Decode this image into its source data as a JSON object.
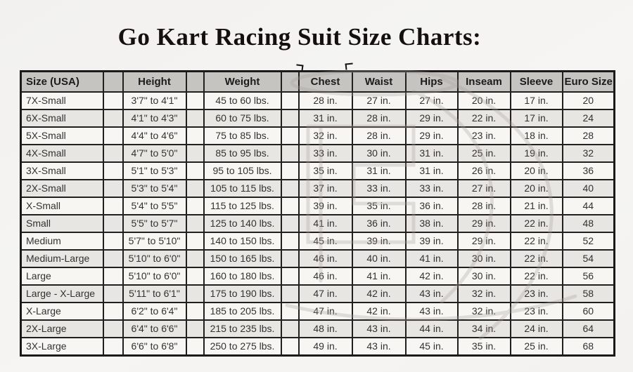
{
  "chart_data": {
    "type": "table",
    "title": "Go Kart Racing Suit Size Charts:",
    "columns": [
      "Size (USA)",
      "Height",
      "Weight",
      "Chest",
      "Waist",
      "Hips",
      "Inseam",
      "Sleeve",
      "Euro Size"
    ],
    "rows": [
      [
        "7X-Small",
        "3'7\" to 4'1\"",
        "45 to 60 lbs.",
        "28 in.",
        "27 in.",
        "27 in.",
        "20 in.",
        "17 in.",
        "20"
      ],
      [
        "6X-Small",
        "4'1\" to 4'3\"",
        "60 to 75 lbs.",
        "31 in.",
        "28 in.",
        "29 in.",
        "22 in.",
        "17 in.",
        "24"
      ],
      [
        "5X-Small",
        "4'4\" to 4'6\"",
        "75 to 85 lbs.",
        "32 in.",
        "28 in.",
        "29 in.",
        "23 in.",
        "18 in.",
        "28"
      ],
      [
        "4X-Small",
        "4'7\" to 5'0\"",
        "85 to 95 lbs.",
        "33 in.",
        "30 in.",
        "31 in.",
        "25 in.",
        "19 in.",
        "32"
      ],
      [
        "3X-Small",
        "5'1\" to 5'3\"",
        "95 to 105 lbs.",
        "35 in.",
        "31 in.",
        "31 in.",
        "26 in.",
        "20 in.",
        "36"
      ],
      [
        "2X-Small",
        "5'3\" to 5'4\"",
        "105 to 115 lbs.",
        "37 in.",
        "33 in.",
        "33 in.",
        "27 in.",
        "20 in.",
        "40"
      ],
      [
        "X-Small",
        "5'4\" to 5'5\"",
        "115 to 125 lbs.",
        "39 in.",
        "35 in.",
        "36 in.",
        "28 in.",
        "21 in.",
        "44"
      ],
      [
        "Small",
        "5'5\" to 5'7\"",
        "125 to 140 lbs.",
        "41 in.",
        "36 in.",
        "38 in.",
        "29 in.",
        "22 in.",
        "48"
      ],
      [
        "Medium",
        "5'7\" to 5'10\"",
        "140 to 150 lbs.",
        "45 in.",
        "39 in.",
        "39 in.",
        "29 in.",
        "22 in.",
        "52"
      ],
      [
        "Medium-Large",
        "5'10\" to 6'0\"",
        "150 to 165 lbs.",
        "46 in.",
        "40 in.",
        "41 in.",
        "30 in.",
        "22 in.",
        "54"
      ],
      [
        "Large",
        "5'10\" to 6'0\"",
        "160 to 180 lbs.",
        "46 in.",
        "41 in.",
        "42 in.",
        "30 in.",
        "22 in.",
        "56"
      ],
      [
        "Large - X-Large",
        "5'11\" to 6'1\"",
        "175 to 190 lbs.",
        "47 in.",
        "42 in.",
        "43 in.",
        "32 in.",
        "23 in.",
        "58"
      ],
      [
        "X-Large",
        "6'2\" to 6'4\"",
        "185 to 205 lbs.",
        "47 in.",
        "42 in.",
        "43 in.",
        "32 in.",
        "23 in.",
        "60"
      ],
      [
        "2X-Large",
        "6'4\" to 6'6\"",
        "215 to 235 lbs.",
        "48 in.",
        "43 in.",
        "44 in.",
        "34 in.",
        "24 in.",
        "64"
      ],
      [
        "3X-Large",
        "6'6\" to 6'8\"",
        "250 to 275 lbs.",
        "49 in.",
        "43 in.",
        "45 in.",
        "35 in.",
        "25 in.",
        "68"
      ]
    ],
    "layout_hints": {
      "header_style": "gray shaded, bold",
      "row_striping": "odd white, even light gray",
      "spacer_columns_after": [
        "Size (USA)",
        "Height",
        "Weight"
      ]
    },
    "colors": {
      "header_bg": "#c6c4c1",
      "row_bg": "#f7f6f3",
      "row_alt_bg": "#e8e6e3",
      "border": "#22201e",
      "text": "#34322f",
      "title_text": "#14100e"
    }
  }
}
